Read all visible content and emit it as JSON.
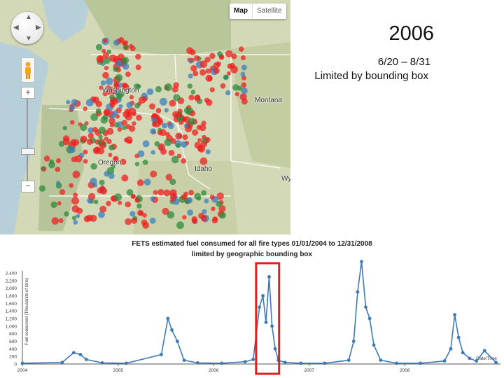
{
  "slide": {
    "year": "2006",
    "date_range": "6/20 – 8/31",
    "note": "Limited by bounding box"
  },
  "map": {
    "type_buttons": [
      "Map",
      "Satellite"
    ],
    "active_type": "Map",
    "places": {
      "washington": "Washington",
      "oregon": "Oregon",
      "idaho": "Idaho",
      "montana": "Montana",
      "wyoming": "Wy"
    },
    "zoom_in": "+",
    "zoom_out": "−",
    "colors": {
      "fire_red": "#ee2020",
      "fire_green": "#2e8b3c",
      "fire_blue": "#3a7fc0"
    }
  },
  "chart_data": {
    "type": "line",
    "title": "FETS estimated fuel consumed for all fire types 01/01/2004 to 12/31/2008",
    "subtitle": "limited by geographic bounding box",
    "ylabel": "Fuel consumed (Thousands of tons)",
    "xlabel": "Date/Time",
    "ylim": [
      0,
      2400
    ],
    "yticks": [
      "2,400",
      "2,200",
      "2,000",
      "1,800",
      "1,600",
      "1,400",
      "1,200",
      "1,000",
      "800",
      "600",
      "400",
      "200",
      "0"
    ],
    "xticks": [
      "2004",
      "2005",
      "2006",
      "2007",
      "2008"
    ],
    "line_color": "#3d7ab5",
    "highlight": {
      "range": [
        "2006-06-20",
        "2006-08-31"
      ],
      "color": "#e02020"
    },
    "series": [
      {
        "x": [
          "2004-01-01",
          "2004-06-01",
          "2004-07-15",
          "2004-08-10",
          "2004-09-01",
          "2004-11-01",
          "2005-02-01",
          "2005-06-15",
          "2005-07-10",
          "2005-07-25",
          "2005-08-15",
          "2005-09-10",
          "2005-11-01",
          "2006-02-01",
          "2006-05-01",
          "2006-06-01",
          "2006-06-25",
          "2006-07-08",
          "2006-07-20",
          "2006-08-01",
          "2006-08-12",
          "2006-08-24",
          "2006-09-05",
          "2006-10-01",
          "2006-12-01",
          "2007-03-01",
          "2007-06-01",
          "2007-06-20",
          "2007-07-05",
          "2007-07-20",
          "2007-08-05",
          "2007-08-20",
          "2007-09-05",
          "2007-10-01",
          "2007-12-01",
          "2008-03-01",
          "2008-06-01",
          "2008-06-25",
          "2008-07-10",
          "2008-07-25",
          "2008-08-10",
          "2008-09-05",
          "2008-10-01",
          "2008-11-01",
          "2008-12-15"
        ],
        "y": [
          20,
          40,
          300,
          250,
          120,
          30,
          20,
          250,
          1200,
          900,
          600,
          100,
          30,
          20,
          60,
          120,
          1500,
          1800,
          1100,
          2300,
          1000,
          400,
          100,
          40,
          20,
          20,
          100,
          600,
          1900,
          2700,
          1500,
          1200,
          500,
          100,
          20,
          20,
          80,
          400,
          1300,
          700,
          300,
          150,
          80,
          350,
          40
        ]
      }
    ]
  }
}
